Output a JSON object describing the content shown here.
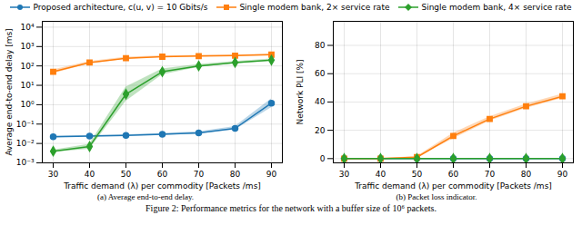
{
  "caption": "Figure 2: Performance metrics for the network with a buffer size of 10⁶ packets.",
  "chart_data": [
    {
      "type": "line",
      "title": "(a) Average end-to-end delay.",
      "xlabel": "Traffic demand (λ) per commodity [Packets /ms]",
      "ylabel": "Average end-to-end delay [ms]",
      "log": "y",
      "grid": true,
      "legend": "top",
      "x": [
        30,
        40,
        50,
        60,
        70,
        80,
        90
      ],
      "xlim": [
        27,
        93
      ],
      "xticks": [
        30,
        40,
        50,
        60,
        70,
        80,
        90
      ],
      "ylim": [
        0.001,
        20000
      ],
      "yticks": [
        {
          "value": 0.001,
          "label": "10⁻³"
        },
        {
          "value": 0.01,
          "label": "10⁻²"
        },
        {
          "value": 0.1,
          "label": "10⁻¹"
        },
        {
          "value": 1,
          "label": "10⁰"
        },
        {
          "value": 10,
          "label": "10¹"
        },
        {
          "value": 100,
          "label": "10²"
        },
        {
          "value": 1000,
          "label": "10³"
        },
        {
          "value": 10000,
          "label": "10⁴"
        }
      ],
      "series": [
        {
          "name": "Proposed architecture, c(u, v) = 10 Gbits/s",
          "color": "#1f77b4",
          "marker": "circle",
          "line_style": "solid",
          "values": [
            0.022,
            0.024,
            0.026,
            0.03,
            0.035,
            0.06,
            1.2
          ],
          "lower": [
            0.02,
            0.022,
            0.024,
            0.027,
            0.031,
            0.05,
            0.7
          ],
          "upper": [
            0.024,
            0.026,
            0.028,
            0.033,
            0.04,
            0.075,
            2.0
          ]
        },
        {
          "name": "Single modem bank, 2× service rate",
          "color": "#ff7f0e",
          "marker": "square",
          "line_style": "solid",
          "values": [
            50,
            150,
            250,
            300,
            320,
            340,
            380
          ],
          "lower": [
            40,
            130,
            225,
            275,
            295,
            315,
            350
          ],
          "upper": [
            62,
            170,
            280,
            330,
            350,
            370,
            410
          ]
        },
        {
          "name": "Single modem bank, 4× service rate",
          "color": "#2ca02c",
          "marker": "diamond",
          "line_style": "solid",
          "values": [
            0.004,
            0.007,
            3.5,
            50,
            100,
            150,
            200
          ],
          "lower": [
            0.0035,
            0.005,
            1.5,
            35,
            85,
            130,
            175
          ],
          "upper": [
            0.0045,
            0.009,
            8,
            70,
            120,
            170,
            230
          ]
        }
      ]
    },
    {
      "type": "line",
      "title": "(b) Packet loss indicator.",
      "xlabel": "Traffic demand (λ) per commodity [Packets /ms]",
      "ylabel": "Network PLI [%]",
      "grid": true,
      "x": [
        30,
        40,
        50,
        60,
        70,
        80,
        90
      ],
      "xlim": [
        27,
        93
      ],
      "xticks": [
        30,
        40,
        50,
        60,
        70,
        80,
        90
      ],
      "ylim": [
        -3,
        97
      ],
      "yticks": [
        0,
        20,
        40,
        60,
        80
      ],
      "series": [
        {
          "name": "Proposed architecture, c(u, v) = 10 Gbits/s",
          "color": "#1f77b4",
          "marker": "circle",
          "line_style": "solid",
          "values": [
            0,
            0,
            0,
            0,
            0,
            0,
            0
          ]
        },
        {
          "name": "Single modem bank, 2× service rate",
          "color": "#ff7f0e",
          "marker": "square",
          "line_style": "solid",
          "values": [
            0,
            0,
            1,
            16,
            28,
            37,
            44
          ],
          "lower": [
            0,
            0,
            0.5,
            14,
            26.5,
            35.5,
            42.5
          ],
          "upper": [
            0,
            0,
            1.5,
            18,
            29.5,
            38.5,
            45.5
          ]
        },
        {
          "name": "Single modem bank, 4× service rate",
          "color": "#2ca02c",
          "marker": "diamond",
          "line_style": "solid",
          "values": [
            0,
            0,
            0,
            0,
            0,
            0,
            0
          ]
        }
      ]
    }
  ]
}
